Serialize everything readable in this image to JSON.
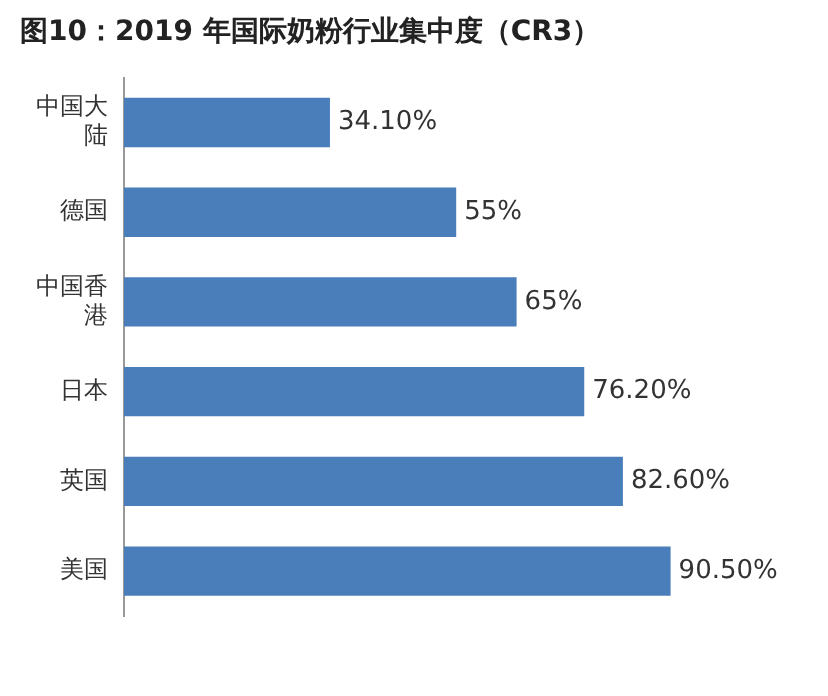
{
  "chart_data": {
    "type": "bar",
    "title": "图10：2019 年国际奶粉行业集中度（CR3）",
    "orientation": "horizontal",
    "categories": [
      "中国大陆",
      "德国",
      "中国香港",
      "日本",
      "英国",
      "美国"
    ],
    "values": [
      34.1,
      55,
      65,
      76.2,
      82.6,
      90.5
    ],
    "value_labels": [
      "34.10%",
      "55%",
      "65%",
      "76.20%",
      "82.60%",
      "90.50%"
    ],
    "color": "#4a7ebb",
    "tick_labels": "y"
  }
}
